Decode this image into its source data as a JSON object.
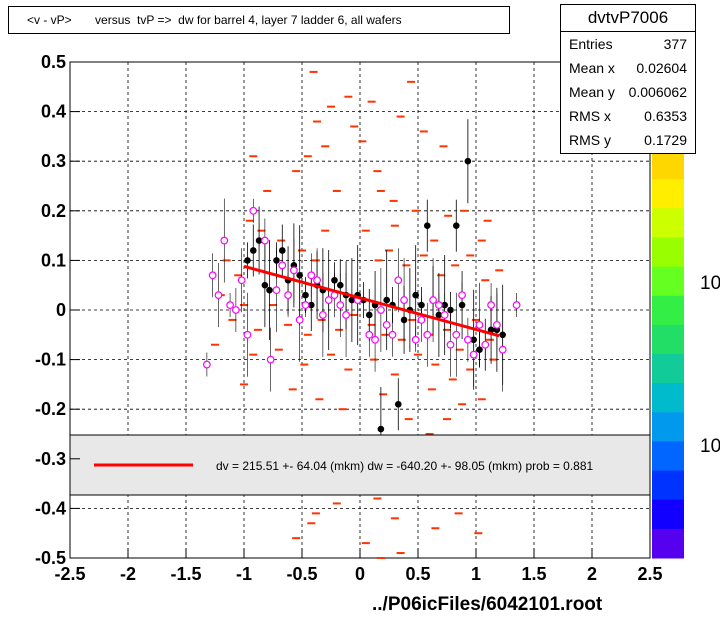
{
  "title": "<v - vP>       versus  tvP =>  dw for barrel 4, layer 7 ladder 6, all wafers",
  "stats": {
    "name": "dvtvP7006",
    "rows": [
      {
        "label": "Entries",
        "value": "377"
      },
      {
        "label": "Mean x",
        "value": "0.02604"
      },
      {
        "label": "Mean y",
        "value": "0.006062"
      },
      {
        "label": "RMS x",
        "value": "0.6353"
      },
      {
        "label": "RMS y",
        "value": "0.1729"
      }
    ]
  },
  "legend_text": "dv =  215.51 +- 64.04 (mkm) dw = -640.20 +- 98.05 (mkm) prob = 0.881",
  "footer": "../P06icFiles/6042101.root",
  "palette_labels": [
    "10",
    "10"
  ],
  "colors": {
    "fit": "#ff0000",
    "hist": "#ff3300",
    "profile": "#000000",
    "marker": "#ff00ff"
  },
  "chart_data": {
    "type": "scatter",
    "xlim": [
      -2.5,
      2.5
    ],
    "ylim": [
      -0.5,
      0.5
    ],
    "x_ticks": [
      "-2.5",
      "-2",
      "-1.5",
      "-1",
      "-0.5",
      "0",
      "0.5",
      "1",
      "1.5",
      "2",
      "2.5"
    ],
    "y_ticks": [
      "0.5",
      "0.4",
      "0.3",
      "0.2",
      "0.1",
      "0",
      "-0.1",
      "-0.2",
      "-0.3",
      "-0.4",
      "-0.5"
    ],
    "grid": true,
    "fit_line": {
      "x": [
        -1.0,
        1.2
      ],
      "y": [
        0.088,
        -0.052
      ]
    },
    "profile_black": [
      [
        -0.97,
        0.1
      ],
      [
        -0.92,
        0.12
      ],
      [
        -0.87,
        0.14
      ],
      [
        -0.82,
        0.05
      ],
      [
        -0.78,
        0.04
      ],
      [
        -0.72,
        0.1
      ],
      [
        -0.67,
        0.12
      ],
      [
        -0.62,
        0.06
      ],
      [
        -0.57,
        0.09
      ],
      [
        -0.52,
        0.07
      ],
      [
        -0.47,
        0.03
      ],
      [
        -0.42,
        0.01
      ],
      [
        -0.37,
        0.05
      ],
      [
        -0.32,
        0.04
      ],
      [
        -0.27,
        0.02
      ],
      [
        -0.22,
        0.06
      ],
      [
        -0.17,
        0.05
      ],
      [
        -0.12,
        0.03
      ],
      [
        -0.07,
        0.02
      ],
      [
        -0.02,
        0.03
      ],
      [
        0.03,
        0.02
      ],
      [
        0.08,
        -0.01
      ],
      [
        0.13,
        0.01
      ],
      [
        0.18,
        -0.24
      ],
      [
        0.23,
        0.02
      ],
      [
        0.28,
        0.01
      ],
      [
        0.33,
        -0.19
      ],
      [
        0.38,
        -0.02
      ],
      [
        0.43,
        0.0
      ],
      [
        0.48,
        0.03
      ],
      [
        0.53,
        0.01
      ],
      [
        0.58,
        0.17
      ],
      [
        0.63,
        0.02
      ],
      [
        0.68,
        -0.01
      ],
      [
        0.73,
        0.01
      ],
      [
        0.78,
        0.0
      ],
      [
        0.83,
        0.17
      ],
      [
        0.88,
        0.01
      ],
      [
        0.93,
        0.3
      ],
      [
        0.98,
        -0.06
      ],
      [
        1.03,
        -0.08
      ],
      [
        1.08,
        -0.07
      ],
      [
        1.13,
        -0.04
      ],
      [
        1.18,
        -0.04
      ],
      [
        1.23,
        -0.05
      ]
    ],
    "profile_magenta": [
      [
        -1.32,
        -0.11
      ],
      [
        -1.27,
        0.07
      ],
      [
        -1.22,
        0.03
      ],
      [
        -1.17,
        0.14
      ],
      [
        -1.12,
        0.01
      ],
      [
        -1.07,
        0.0
      ],
      [
        -1.02,
        0.06
      ],
      [
        -0.97,
        -0.05
      ],
      [
        -0.92,
        0.2
      ],
      [
        -0.82,
        0.14
      ],
      [
        -0.77,
        -0.1
      ],
      [
        -0.72,
        0.04
      ],
      [
        -0.67,
        0.09
      ],
      [
        -0.62,
        0.03
      ],
      [
        -0.57,
        0.08
      ],
      [
        -0.52,
        -0.02
      ],
      [
        -0.47,
        0.01
      ],
      [
        -0.42,
        0.07
      ],
      [
        -0.37,
        0.06
      ],
      [
        -0.32,
        -0.01
      ],
      [
        -0.27,
        0.02
      ],
      [
        -0.22,
        0.03
      ],
      [
        -0.17,
        0.01
      ],
      [
        -0.12,
        -0.01
      ],
      [
        -0.02,
        0.02
      ],
      [
        0.08,
        -0.05
      ],
      [
        0.13,
        -0.06
      ],
      [
        0.18,
        0.0
      ],
      [
        0.23,
        -0.03
      ],
      [
        0.28,
        -0.05
      ],
      [
        0.33,
        0.06
      ],
      [
        0.38,
        0.02
      ],
      [
        0.48,
        -0.06
      ],
      [
        0.53,
        -0.02
      ],
      [
        0.58,
        -0.05
      ],
      [
        0.63,
        0.02
      ],
      [
        0.68,
        0.01
      ],
      [
        0.73,
        -0.01
      ],
      [
        0.78,
        -0.07
      ],
      [
        0.83,
        -0.05
      ],
      [
        0.88,
        0.03
      ],
      [
        0.93,
        -0.06
      ],
      [
        0.98,
        -0.09
      ],
      [
        1.03,
        -0.03
      ],
      [
        1.08,
        -0.07
      ],
      [
        1.13,
        0.01
      ],
      [
        1.18,
        -0.03
      ],
      [
        1.23,
        -0.08
      ],
      [
        1.35,
        0.01
      ]
    ],
    "hist_dashes": [
      [
        -0.4,
        0.48
      ],
      [
        -0.37,
        0.38
      ],
      [
        -0.25,
        0.41
      ],
      [
        -0.1,
        0.43
      ],
      [
        -0.05,
        0.37
      ],
      [
        0.1,
        0.42
      ],
      [
        -0.45,
        0.31
      ],
      [
        -0.3,
        0.33
      ],
      [
        0.02,
        0.34
      ],
      [
        0.35,
        0.39
      ],
      [
        0.44,
        0.46
      ],
      [
        0.55,
        0.36
      ],
      [
        0.15,
        0.28
      ],
      [
        0.29,
        0.22
      ],
      [
        0.72,
        0.33
      ],
      [
        0.76,
        0.19
      ],
      [
        -0.92,
        0.31
      ],
      [
        -0.8,
        0.24
      ],
      [
        -0.55,
        0.28
      ],
      [
        -0.2,
        0.24
      ],
      [
        0.18,
        0.24
      ],
      [
        0.3,
        0.17
      ],
      [
        0.48,
        0.2
      ],
      [
        0.64,
        0.14
      ],
      [
        0.9,
        0.2
      ],
      [
        1.05,
        0.14
      ],
      [
        1.1,
        0.18
      ],
      [
        -1.15,
        0.1
      ],
      [
        -1.05,
        0.07
      ],
      [
        -0.95,
        0.18
      ],
      [
        -0.85,
        0.16
      ],
      [
        -0.68,
        0.14
      ],
      [
        -0.5,
        0.12
      ],
      [
        -0.38,
        0.1
      ],
      [
        -0.3,
        0.16
      ],
      [
        0.05,
        0.16
      ],
      [
        0.16,
        0.1
      ],
      [
        0.25,
        0.12
      ],
      [
        0.4,
        0.09
      ],
      [
        0.55,
        0.11
      ],
      [
        0.7,
        0.07
      ],
      [
        0.82,
        0.09
      ],
      [
        0.95,
        0.11
      ],
      [
        1.08,
        0.06
      ],
      [
        1.2,
        0.08
      ],
      [
        -1.2,
        0.03
      ],
      [
        -1.1,
        -0.02
      ],
      [
        -1.0,
        0.01
      ],
      [
        -0.88,
        -0.04
      ],
      [
        -0.75,
        0.01
      ],
      [
        -0.62,
        -0.03
      ],
      [
        -0.45,
        -0.05
      ],
      [
        -0.33,
        -0.02
      ],
      [
        -0.18,
        -0.04
      ],
      [
        -0.05,
        -0.01
      ],
      [
        0.1,
        -0.03
      ],
      [
        0.22,
        -0.05
      ],
      [
        0.36,
        -0.06
      ],
      [
        0.45,
        -0.02
      ],
      [
        0.6,
        -0.05
      ],
      [
        0.75,
        -0.04
      ],
      [
        0.86,
        -0.08
      ],
      [
        1.0,
        -0.02
      ],
      [
        1.12,
        -0.06
      ],
      [
        -1.25,
        -0.07
      ],
      [
        -0.92,
        -0.09
      ],
      [
        -0.7,
        -0.08
      ],
      [
        -0.48,
        -0.11
      ],
      [
        -0.25,
        -0.09
      ],
      [
        -0.1,
        -0.12
      ],
      [
        0.12,
        -0.1
      ],
      [
        0.3,
        -0.13
      ],
      [
        0.5,
        -0.09
      ],
      [
        0.65,
        -0.11
      ],
      [
        0.8,
        -0.14
      ],
      [
        0.95,
        -0.12
      ],
      [
        1.15,
        -0.1
      ],
      [
        -1.0,
        -0.15
      ],
      [
        -0.58,
        -0.16
      ],
      [
        -0.35,
        -0.18
      ],
      [
        0.2,
        -0.17
      ],
      [
        0.42,
        -0.22
      ],
      [
        0.62,
        -0.16
      ],
      [
        0.88,
        -0.19
      ],
      [
        1.05,
        -0.18
      ],
      [
        0.26,
        -0.26
      ],
      [
        0.6,
        -0.25
      ],
      [
        0.75,
        -0.22
      ],
      [
        -0.15,
        -0.2
      ],
      [
        -0.42,
        -0.43
      ],
      [
        -0.2,
        -0.39
      ],
      [
        0.15,
        -0.38
      ],
      [
        -0.38,
        -0.41
      ],
      [
        0.3,
        -0.42
      ],
      [
        0.65,
        -0.44
      ],
      [
        0.85,
        -0.41
      ],
      [
        1.02,
        -0.45
      ],
      [
        -0.55,
        -0.46
      ],
      [
        0.05,
        -0.47
      ],
      [
        0.35,
        -0.49
      ],
      [
        0.18,
        -0.5
      ]
    ]
  }
}
